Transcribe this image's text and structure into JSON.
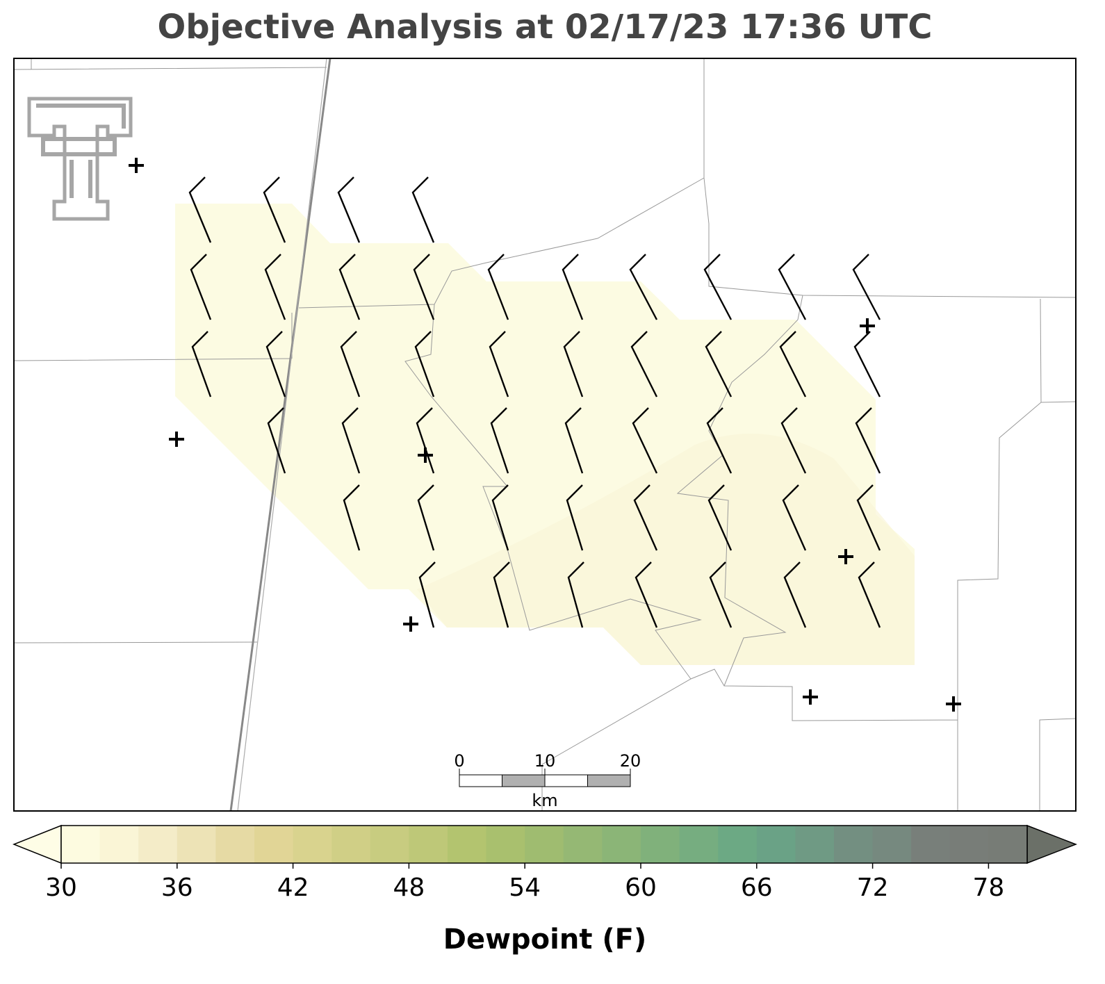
{
  "title": "Objective Analysis at 02/17/23 17:36 UTC",
  "scale_bar": {
    "ticks": [
      0,
      10,
      20
    ],
    "unit": "km"
  },
  "colorbar": {
    "label": "Dewpoint (F)",
    "clim": [
      30,
      80
    ],
    "ticks": [
      30,
      36,
      42,
      48,
      54,
      60,
      66,
      72,
      78
    ],
    "under_color": "#fefde6",
    "over_color": "#6b7068",
    "colors": [
      "#fdfbe0",
      "#faf5d6",
      "#f4ecc8",
      "#ede3b6",
      "#e6daa4",
      "#e1d596",
      "#d9d38e",
      "#d0cf86",
      "#c8cc80",
      "#bec878",
      "#b3c46f",
      "#a9c06e",
      "#9fbc70",
      "#95b874",
      "#8bb577",
      "#80b17b",
      "#76ad80",
      "#6ca984",
      "#6aa286",
      "#6f9a84",
      "#738f81",
      "#76897f",
      "#787f7a",
      "#787d78",
      "#777c76"
    ]
  }
}
